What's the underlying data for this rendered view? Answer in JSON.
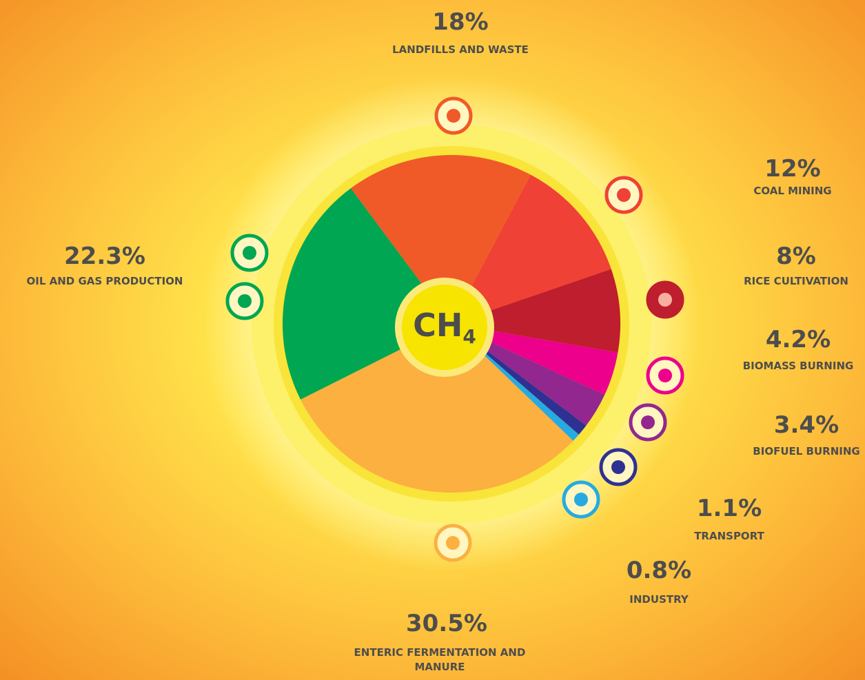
{
  "chart_data": {
    "type": "pie",
    "center_label": {
      "main": "CH",
      "subscript": "4"
    },
    "categories": [
      "LANDFILLS AND WASTE",
      "COAL MINING",
      "RICE CULTIVATION",
      "BIOMASS BURNING",
      "BIOFUEL BURNING",
      "TRANSPORT",
      "INDUSTRY",
      "ENTERIC FERMENTATION AND MANURE",
      "OIL AND GAS PRODUCTION"
    ],
    "values": [
      18,
      12,
      8,
      4.2,
      3.4,
      1.1,
      0.8,
      30.5,
      22.3
    ],
    "value_labels": [
      "18%",
      "12%",
      "8%",
      "4.2%",
      "3.4%",
      "1.1%",
      "0.8%",
      "30.5%",
      "22.3%"
    ],
    "colors": [
      "#f05a28",
      "#ef4136",
      "#be1e2d",
      "#ec008c",
      "#92278f",
      "#2e3192",
      "#27aae1",
      "#fbb040",
      "#00a651"
    ]
  }
}
